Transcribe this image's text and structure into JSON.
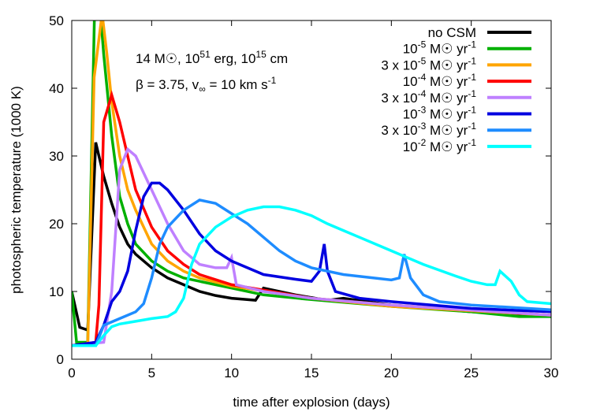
{
  "chart_data": {
    "type": "line",
    "xlabel": "time after explosion (days)",
    "ylabel": "photospheric temperature (1000 K)",
    "xlim": [
      0,
      30
    ],
    "ylim": [
      0,
      50
    ],
    "xticks": [
      0,
      5,
      10,
      15,
      20,
      25,
      30
    ],
    "yticks": [
      0,
      10,
      20,
      30,
      40,
      50
    ],
    "grid": false,
    "legend_position": "top-right",
    "annotation": {
      "line1": [
        {
          "t": "14 M☉, 10"
        },
        {
          "sup": "51"
        },
        {
          "t": " erg, 10"
        },
        {
          "sup": "15"
        },
        {
          "t": " cm"
        }
      ],
      "line2": [
        {
          "t": "β = 3.75, v"
        },
        {
          "sub": "∞"
        },
        {
          "t": " = 10 km s"
        },
        {
          "sup": "-1"
        }
      ]
    },
    "series": [
      {
        "name": [
          {
            "t": "no CSM"
          }
        ],
        "color": "#000000",
        "x": [
          0,
          0.5,
          1,
          1.5,
          2,
          2.5,
          3,
          3.5,
          4,
          5,
          6,
          7,
          8,
          9,
          10,
          11.5,
          12,
          14,
          16,
          17,
          20,
          25,
          30
        ],
        "y": [
          10,
          4.7,
          4.3,
          32,
          27,
          23,
          19.5,
          17,
          15.5,
          13.5,
          12,
          11,
          10,
          9.4,
          9,
          8.7,
          10.5,
          9.5,
          8.7,
          9,
          8,
          7,
          6.3
        ]
      },
      {
        "name": [
          {
            "t": "10"
          },
          {
            "sup": "-5"
          },
          {
            "t": " M☉ yr"
          },
          {
            "sup": "-1"
          }
        ],
        "color": "#00b000",
        "x": [
          0,
          0.3,
          1,
          1.5,
          2,
          2.5,
          3,
          3.5,
          4,
          5,
          6,
          7,
          8,
          10,
          12,
          15,
          20,
          25,
          28,
          30
        ],
        "y": [
          10,
          2.5,
          2.5,
          60,
          45,
          33,
          24,
          20,
          17,
          14.5,
          13,
          12,
          11.5,
          10.5,
          9.5,
          8.8,
          7.8,
          7,
          6.3,
          6.3
        ]
      },
      {
        "name": [
          {
            "t": "3 x 10"
          },
          {
            "sup": "-5"
          },
          {
            "t": " M☉ yr"
          },
          {
            "sup": "-1"
          }
        ],
        "color": "#ffa500",
        "x": [
          0,
          1,
          1.4,
          1.9,
          2.2,
          2.5,
          3,
          3.5,
          4,
          5,
          6,
          7,
          8,
          10,
          15,
          20,
          30
        ],
        "y": [
          2,
          2,
          41.6,
          51,
          45,
          38,
          30,
          25,
          22,
          17,
          14.5,
          13,
          12,
          10.8,
          9,
          7.8,
          6.5
        ]
      },
      {
        "name": [
          {
            "t": "10"
          },
          {
            "sup": "-4"
          },
          {
            "t": " M☉ yr"
          },
          {
            "sup": "-1"
          }
        ],
        "color": "#ff0000",
        "x": [
          0,
          1.5,
          1.7,
          2,
          2.5,
          3,
          3.5,
          4,
          5,
          6,
          7,
          8,
          10,
          15,
          20,
          30
        ],
        "y": [
          2,
          2.5,
          8,
          35,
          39,
          35,
          30,
          25,
          19.5,
          16,
          14,
          12.5,
          11,
          9,
          8,
          6.5
        ]
      },
      {
        "name": [
          {
            "t": "3 x 10"
          },
          {
            "sup": "-4"
          },
          {
            "t": " M☉ yr"
          },
          {
            "sup": "-1"
          }
        ],
        "color": "#bf80ff",
        "x": [
          0,
          2,
          2.5,
          3,
          3.5,
          4,
          5,
          6,
          7,
          8,
          9,
          9.7,
          10,
          10.3,
          12,
          15,
          20,
          30
        ],
        "y": [
          2,
          2.5,
          10,
          28,
          31,
          30,
          25,
          20,
          16,
          14,
          13.5,
          13.5,
          15,
          11,
          10,
          9,
          8,
          6.5
        ]
      },
      {
        "name": [
          {
            "t": "10"
          },
          {
            "sup": "-3"
          },
          {
            "t": " M☉ yr"
          },
          {
            "sup": "-1"
          }
        ],
        "color": "#0000e0",
        "x": [
          0,
          1.5,
          2,
          2.5,
          3,
          3.5,
          4,
          4.5,
          5,
          5.5,
          6,
          7,
          8,
          9,
          10,
          12,
          14,
          15,
          15.5,
          15.8,
          16,
          16.5,
          18,
          20,
          25,
          30
        ],
        "y": [
          2,
          2.5,
          5,
          8.5,
          10,
          13,
          19,
          24,
          26,
          26,
          25,
          22,
          18.5,
          16,
          14.5,
          12.5,
          11.8,
          11.5,
          13,
          17,
          13,
          10,
          9,
          8.5,
          7.5,
          7
        ]
      },
      {
        "name": [
          {
            "t": "3 x 10"
          },
          {
            "sup": "-3"
          },
          {
            "t": " M☉ yr"
          },
          {
            "sup": "-1"
          }
        ],
        "color": "#1e8cff",
        "x": [
          0,
          1.5,
          2,
          3,
          4,
          4.5,
          5,
          5.5,
          6,
          7,
          8,
          9,
          10,
          11,
          12,
          13,
          14,
          15,
          17,
          20,
          20.5,
          20.8,
          21.2,
          22,
          23,
          25,
          30
        ],
        "y": [
          2,
          2,
          5,
          6,
          7,
          8.2,
          12,
          17,
          19.5,
          22,
          23.5,
          23,
          21.5,
          20,
          18,
          16,
          14.5,
          13.5,
          12.5,
          11.7,
          12,
          15.5,
          12,
          9.5,
          8.5,
          8,
          7.3
        ]
      },
      {
        "name": [
          {
            "t": "10"
          },
          {
            "sup": "-2"
          },
          {
            "t": " M☉ yr"
          },
          {
            "sup": "-1"
          }
        ],
        "color": "#00ffff",
        "x": [
          0,
          1.5,
          2,
          2.5,
          3,
          4,
          5,
          6,
          6.5,
          7,
          7.5,
          8,
          9,
          10,
          11,
          12,
          13,
          14,
          15,
          16,
          17,
          18,
          20,
          22,
          24,
          25,
          26,
          26.5,
          26.8,
          27.5,
          28,
          28.5,
          30
        ],
        "y": [
          2,
          2,
          3.5,
          4.8,
          5.2,
          5.6,
          6,
          6.3,
          7,
          9,
          14,
          17,
          19.5,
          21,
          22,
          22.5,
          22.5,
          22,
          21.2,
          20,
          19,
          18,
          16,
          14,
          12.3,
          11.5,
          11,
          11,
          13,
          11.5,
          9.5,
          8.5,
          8.2
        ]
      }
    ]
  }
}
